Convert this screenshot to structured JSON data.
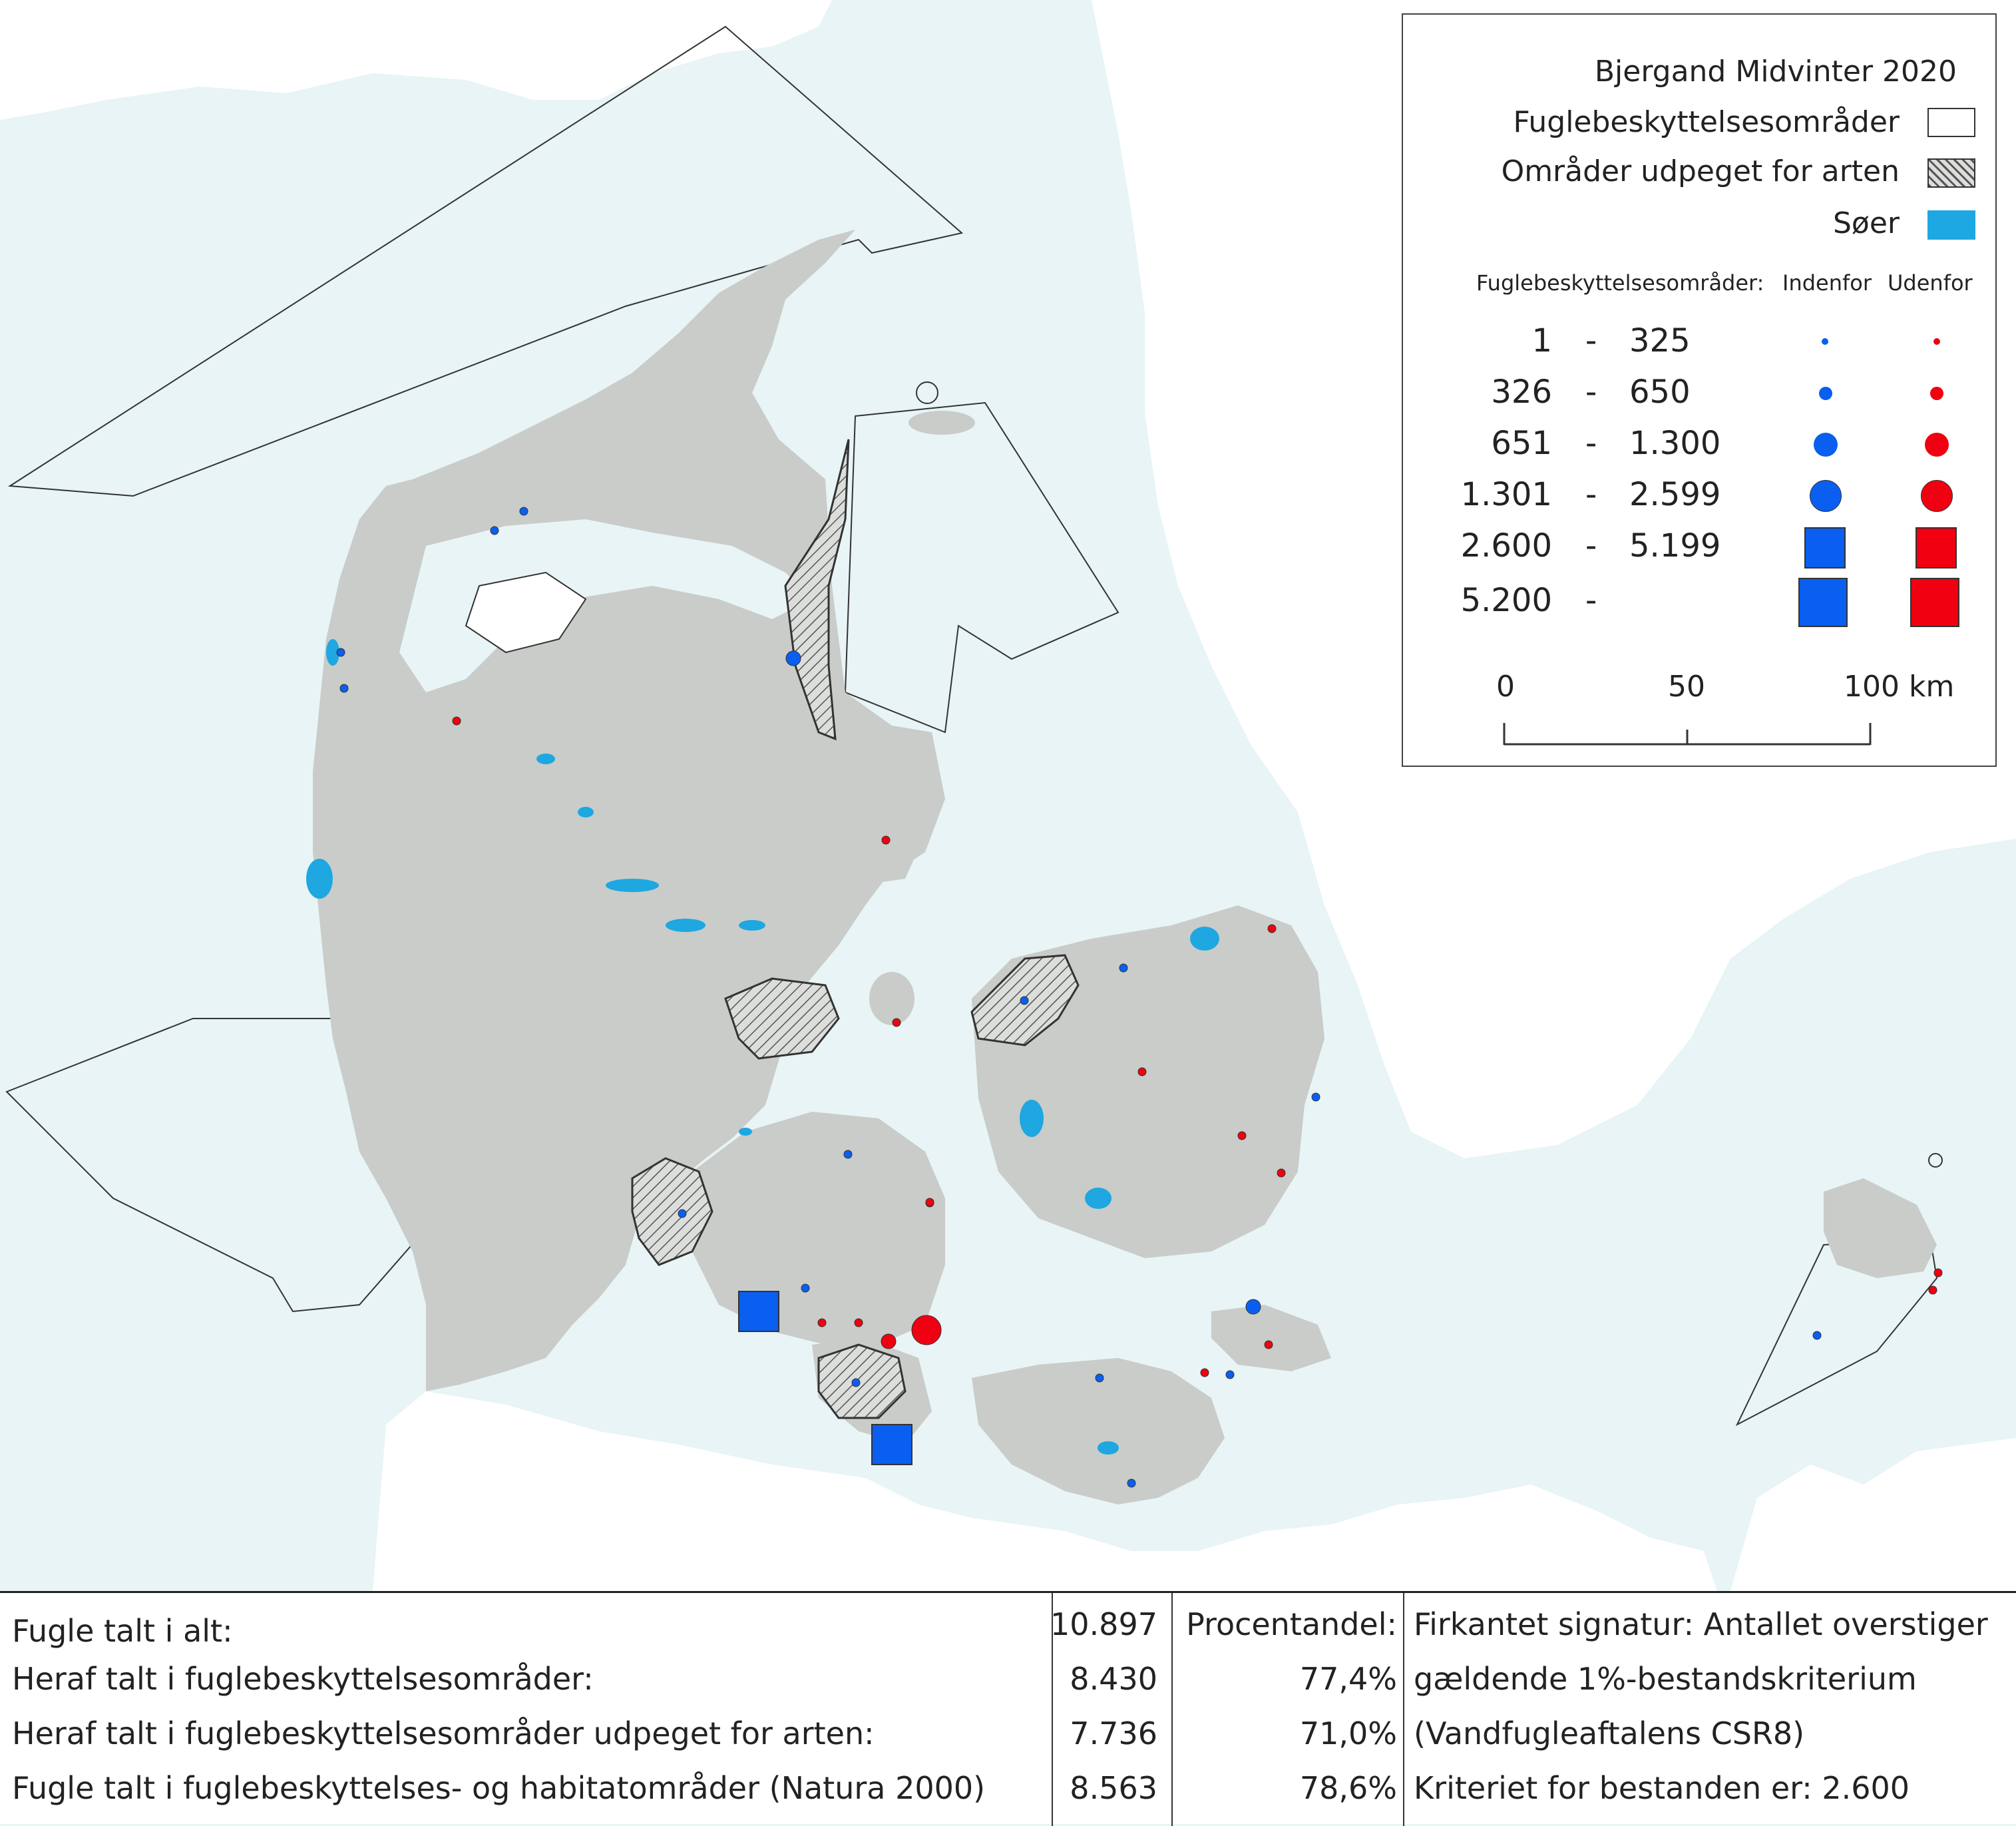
{
  "legend": {
    "title": "Bjergand Midvinter 2020",
    "items": [
      {
        "label": "Fuglebeskyttelsesområder",
        "swatch": "white"
      },
      {
        "label": "Områder udpeget for arten",
        "swatch": "hatched"
      },
      {
        "label": "Søer",
        "swatch": "#1ea7e1"
      }
    ],
    "size_header": {
      "label": "Fuglebeskyttelsesområder:",
      "inside": "Indenfor",
      "outside": "Udenfor"
    },
    "classes": [
      {
        "lo": "1",
        "dash": "-",
        "hi": "325",
        "shape": "circle"
      },
      {
        "lo": "326",
        "dash": "-",
        "hi": "650",
        "shape": "circle"
      },
      {
        "lo": "651",
        "dash": "-",
        "hi": "1.300",
        "shape": "circle"
      },
      {
        "lo": "1.301",
        "dash": "-",
        "hi": "2.599",
        "shape": "circle"
      },
      {
        "lo": "2.600",
        "dash": "-",
        "hi": "5.199",
        "shape": "square"
      },
      {
        "lo": "5.200",
        "dash": "-",
        "hi": "",
        "shape": "square"
      }
    ],
    "scale": {
      "labels": [
        "0",
        "50",
        "100 km"
      ]
    }
  },
  "colors": {
    "sea": "#e8f4f5",
    "land": "#c9ccc8",
    "outside_land": "#ffffff",
    "lake": "#1ea7e1",
    "inside": "#0a5ff0",
    "outside": "#f00010",
    "border": "#333333"
  },
  "stats": {
    "rows": [
      {
        "label": "Fugle talt i alt:",
        "value": "10.897",
        "pct": "Procentandel:",
        "note": "Firkantet signatur: Antallet overstiger"
      },
      {
        "label": "Heraf talt i fuglebeskyttelsesområder:",
        "value": "8.430",
        "pct": "77,4%",
        "note": "gældende 1%-bestandskriterium"
      },
      {
        "label": "Heraf talt i fuglebeskyttelsesområder udpeget for arten:",
        "value": "7.736",
        "pct": "71,0%",
        "note": "(Vandfugleaftalens CSR8)"
      },
      {
        "label": "Fugle talt i fuglebeskyttelses- og habitatområder (Natura 2000)",
        "value": "8.563",
        "pct": "78,6%",
        "note": "Kriteriet for bestanden er: 2.600"
      }
    ]
  }
}
